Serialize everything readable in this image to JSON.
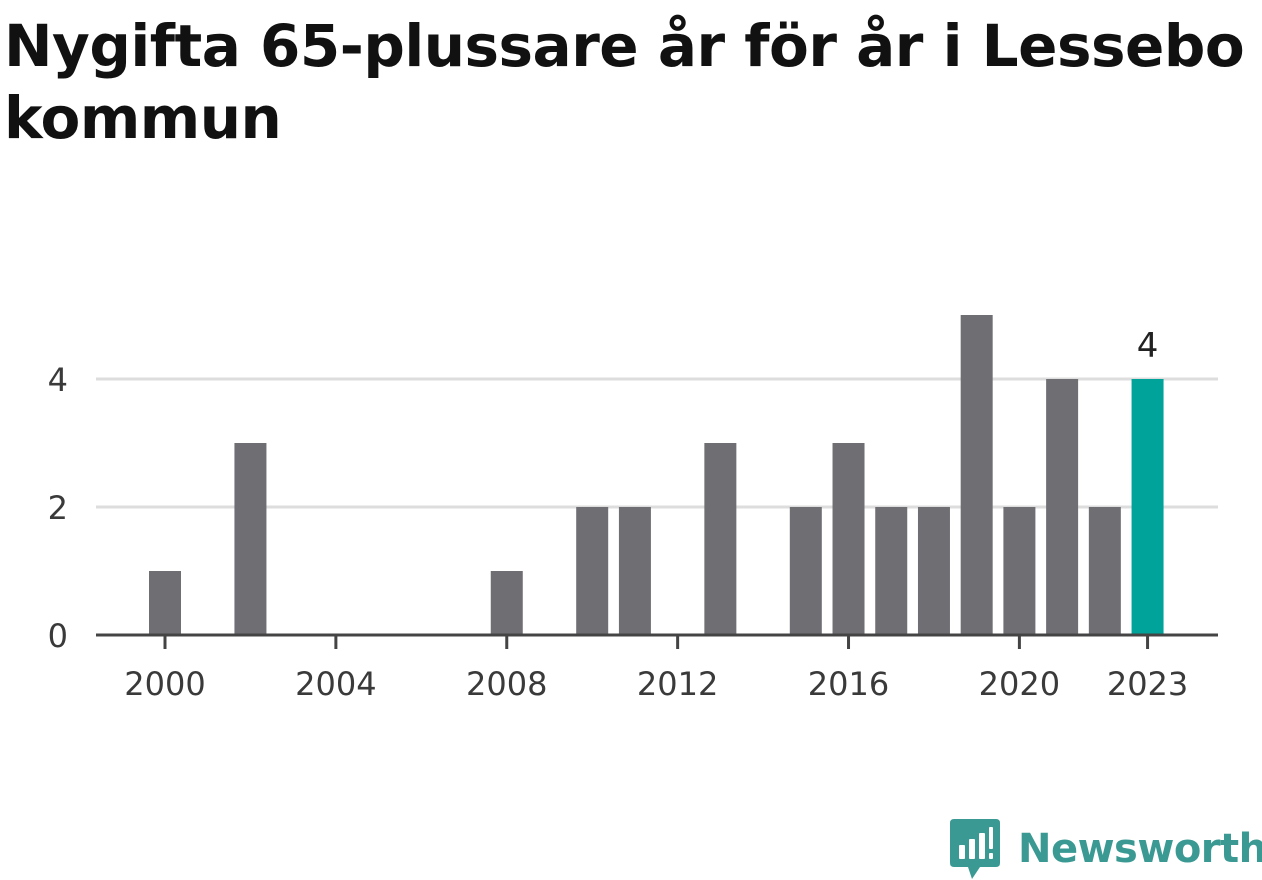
{
  "title": "Nygifta 65-plussare år för år i Lessebo kommun",
  "brand": {
    "name": "Newsworthy",
    "logo_icon": "newsworthy-logo-icon",
    "color": "#3a9a93"
  },
  "chart_data": {
    "type": "bar",
    "title": "Nygifta 65-plussare år för år i Lessebo kommun",
    "xlabel": "",
    "ylabel": "",
    "x": [
      2000,
      2001,
      2002,
      2003,
      2004,
      2005,
      2006,
      2007,
      2008,
      2009,
      2010,
      2011,
      2012,
      2013,
      2014,
      2015,
      2016,
      2017,
      2018,
      2019,
      2020,
      2021,
      2022,
      2023
    ],
    "values": [
      1,
      0,
      3,
      0,
      0,
      0,
      0,
      0,
      1,
      0,
      2,
      2,
      0,
      3,
      0,
      2,
      3,
      2,
      2,
      5,
      2,
      4,
      2,
      4
    ],
    "xticks": [
      "2000",
      "2004",
      "2008",
      "2012",
      "2016",
      "2020",
      "2023"
    ],
    "yticks": [
      "0",
      "2",
      "4"
    ],
    "ylim": [
      0,
      5
    ],
    "grid": true,
    "highlight": {
      "x": 2023,
      "label": "4"
    },
    "colors": {
      "bar": "#6f6e73",
      "highlight": "#00a39a",
      "grid": "#dddddd",
      "axis": "#444444"
    }
  }
}
